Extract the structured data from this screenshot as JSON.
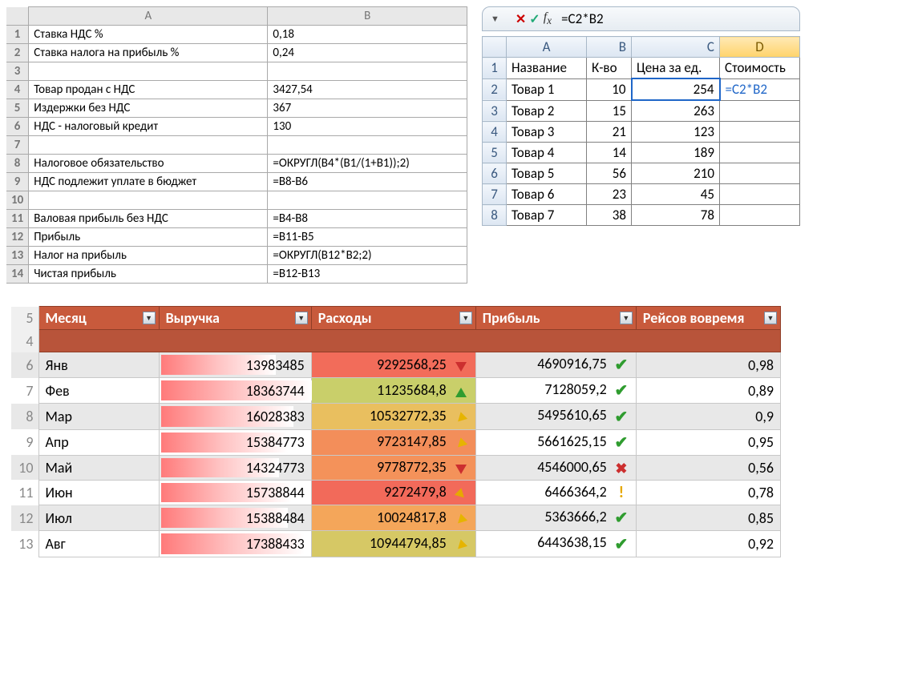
{
  "table1": {
    "columns": [
      "A",
      "B"
    ],
    "rows": [
      {
        "n": 1,
        "a": "Ставка НДС %",
        "b": "0,18"
      },
      {
        "n": 2,
        "a": "Ставка налога на прибыль %",
        "b": "0,24"
      },
      {
        "n": 3,
        "a": "",
        "b": ""
      },
      {
        "n": 4,
        "a": "Товар продан с НДС",
        "b": "3427,54"
      },
      {
        "n": 5,
        "a": "Издержки без НДС",
        "b": "367"
      },
      {
        "n": 6,
        "a": "НДС - налоговый кредит",
        "b": "130"
      },
      {
        "n": 7,
        "a": "",
        "b": ""
      },
      {
        "n": 8,
        "a": "Налоговое обязательство",
        "b": "=ОКРУГЛ(B4*(B1/(1+B1));2)"
      },
      {
        "n": 9,
        "a": "НДС подлежит уплате в бюджет",
        "b": "=B8-B6"
      },
      {
        "n": 10,
        "a": "",
        "b": ""
      },
      {
        "n": 11,
        "a": "Валовая прибыль без НДС",
        "b": "=B4-B8"
      },
      {
        "n": 12,
        "a": "Прибыль",
        "b": "=B11-B5"
      },
      {
        "n": 13,
        "a": "Налог на прибыль",
        "b": "=ОКРУГЛ(B12*B2;2)"
      },
      {
        "n": 14,
        "a": "Чистая прибыль",
        "b": "=B12-B13"
      }
    ]
  },
  "table2": {
    "formula_bar": "=C2*B2",
    "columns": [
      "A",
      "B",
      "C",
      "D"
    ],
    "header_row": [
      "Название",
      "К-во",
      "Цена за ед.",
      "Стоимость"
    ],
    "edit_cell_display": "=C2*B2",
    "rows": [
      {
        "n": 2,
        "a": "Товар 1",
        "b": "10",
        "c": "254"
      },
      {
        "n": 3,
        "a": "Товар 2",
        "b": "15",
        "c": "263"
      },
      {
        "n": 4,
        "a": "Товар 3",
        "b": "21",
        "c": "123"
      },
      {
        "n": 5,
        "a": "Товар 4",
        "b": "14",
        "c": "189"
      },
      {
        "n": 6,
        "a": "Товар 5",
        "b": "56",
        "c": "210"
      },
      {
        "n": 7,
        "a": "Товар 6",
        "b": "23",
        "c": "45"
      },
      {
        "n": 8,
        "a": "Товар 7",
        "b": "38",
        "c": "78"
      }
    ]
  },
  "table3": {
    "headers": [
      "Месяц",
      "Выручка",
      "Расходы",
      "Прибыль",
      "Рейсов вовремя"
    ],
    "colors": {
      "header_bg": "#c85a3c",
      "databar_grad_from": "#ff7a7a",
      "exp_scale": {
        "low": "#f26a5a",
        "mid": "#f5b85a",
        "high": "#c9cf6a"
      }
    },
    "max_revenue": 18363744,
    "exp_min": 9272479.8,
    "exp_max": 11235684.8,
    "rows": [
      {
        "n": 6,
        "month": "Янв",
        "rev": "13983485",
        "rev_raw": 13983485,
        "exp": "9292568,25",
        "exp_raw": 9292568.25,
        "exp_arrow": "down",
        "prof": "4690916,75",
        "prof_icon": "check",
        "ontime": "0,98"
      },
      {
        "n": 7,
        "month": "Фев",
        "rev": "18363744",
        "rev_raw": 18363744,
        "exp": "11235684,8",
        "exp_raw": 11235684.8,
        "exp_arrow": "up",
        "prof": "7128059,2",
        "prof_icon": "check",
        "ontime": "0,89"
      },
      {
        "n": 8,
        "month": "Мар",
        "rev": "16028383",
        "rev_raw": 16028383,
        "exp": "10532772,35",
        "exp_raw": 10532772.35,
        "exp_arrow": "down-right",
        "prof": "5495610,65",
        "prof_icon": "check",
        "ontime": "0,9"
      },
      {
        "n": 9,
        "month": "Апр",
        "rev": "15384773",
        "rev_raw": 15384773,
        "exp": "9723147,85",
        "exp_raw": 9723147.85,
        "exp_arrow": "down-right",
        "prof": "5661625,15",
        "prof_icon": "check",
        "ontime": "0,95"
      },
      {
        "n": 10,
        "month": "Май",
        "rev": "14324773",
        "rev_raw": 14324773,
        "exp": "9778772,35",
        "exp_raw": 9778772.35,
        "exp_arrow": "down",
        "prof": "4546000,65",
        "prof_icon": "cross",
        "ontime": "0,56"
      },
      {
        "n": 11,
        "month": "Июн",
        "rev": "15738844",
        "rev_raw": 15738844,
        "exp": "9272479,8",
        "exp_raw": 9272479.8,
        "exp_arrow": "up-right",
        "prof": "6466364,2",
        "prof_icon": "excl",
        "ontime": "0,78"
      },
      {
        "n": 12,
        "month": "Июл",
        "rev": "15388484",
        "rev_raw": 15388484,
        "exp": "10024817,8",
        "exp_raw": 10024817.8,
        "exp_arrow": "down-right",
        "prof": "5363666,2",
        "prof_icon": "check",
        "ontime": "0,85"
      },
      {
        "n": 13,
        "month": "Авг",
        "rev": "17388433",
        "rev_raw": 17388433,
        "exp": "10944794,85",
        "exp_raw": 10944794.85,
        "exp_arrow": "down-right",
        "prof": "6443638,15",
        "prof_icon": "check",
        "ontime": "0,92"
      }
    ]
  }
}
